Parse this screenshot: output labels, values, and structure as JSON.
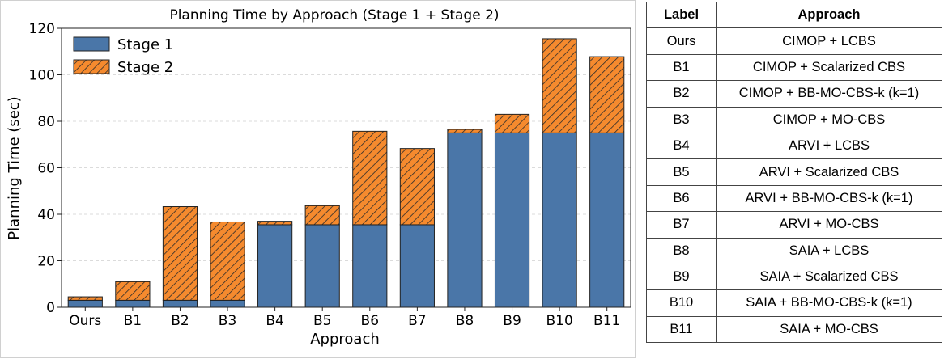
{
  "chart_data": {
    "type": "bar",
    "stacked": true,
    "title": "Planning Time by Approach (Stage 1 + Stage 2)",
    "xlabel": "Approach",
    "ylabel": "Planning Time (sec)",
    "ylim": [
      0,
      120
    ],
    "yticks": [
      0,
      20,
      40,
      60,
      80,
      100,
      120
    ],
    "grid": "horizontal-dashed",
    "legend_position": "top-left",
    "categories": [
      "Ours",
      "B1",
      "B2",
      "B3",
      "B4",
      "B5",
      "B6",
      "B7",
      "B8",
      "B9",
      "B10",
      "B11"
    ],
    "series": [
      {
        "name": "Stage 1",
        "color": "#4a76a8",
        "pattern": "solid",
        "values": [
          3,
          3,
          3,
          3,
          35.5,
          35.5,
          35.5,
          35.5,
          75,
          75,
          75,
          75
        ]
      },
      {
        "name": "Stage 2",
        "color": "#f58a2e",
        "pattern": "hatch",
        "values": [
          1.5,
          8,
          40.3,
          33.7,
          1.5,
          8.2,
          40.2,
          32.8,
          1.5,
          8,
          40.5,
          32.8
        ]
      }
    ]
  },
  "table": {
    "headers": {
      "label": "Label",
      "approach": "Approach"
    },
    "rows": [
      {
        "label": "Ours",
        "approach": "CIMOP + LCBS"
      },
      {
        "label": "B1",
        "approach": "CIMOP + Scalarized CBS"
      },
      {
        "label": "B2",
        "approach": "CIMOP + BB-MO-CBS-k (k=1)"
      },
      {
        "label": "B3",
        "approach": "CIMOP + MO-CBS"
      },
      {
        "label": "B4",
        "approach": "ARVI + LCBS"
      },
      {
        "label": "B5",
        "approach": "ARVI + Scalarized CBS"
      },
      {
        "label": "B6",
        "approach": "ARVI + BB-MO-CBS-k (k=1)"
      },
      {
        "label": "B7",
        "approach": "ARVI + MO-CBS"
      },
      {
        "label": "B8",
        "approach": "SAIA + LCBS"
      },
      {
        "label": "B9",
        "approach": "SAIA + Scalarized CBS"
      },
      {
        "label": "B10",
        "approach": "SAIA + BB-MO-CBS-k (k=1)"
      },
      {
        "label": "B11",
        "approach": "SAIA + MO-CBS"
      }
    ]
  }
}
